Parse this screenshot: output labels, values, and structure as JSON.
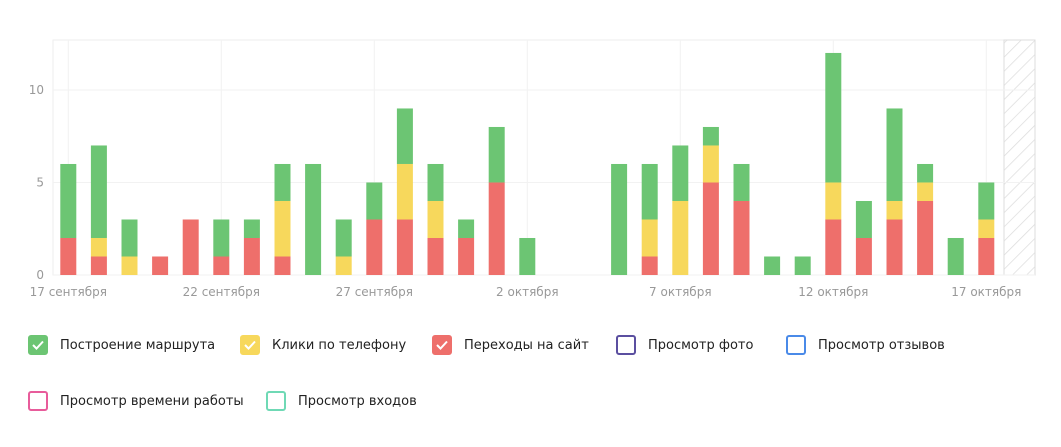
{
  "chart_data": {
    "type": "bar",
    "stacked": true,
    "categories": [
      "17 сентября",
      null,
      null,
      null,
      null,
      "22 сентября",
      null,
      null,
      null,
      null,
      "27 сентября",
      null,
      null,
      null,
      null,
      "2 октября",
      null,
      null,
      null,
      null,
      "7 октября",
      null,
      null,
      null,
      null,
      "12 октября",
      null,
      null,
      null,
      null,
      "17 октября"
    ],
    "ylim": [
      0,
      12.7
    ],
    "yticks": [
      0,
      5,
      10
    ],
    "grid": true,
    "series": [
      {
        "name": "Переходы на сайт",
        "color": "#ee6f6b",
        "checked": true,
        "values": [
          2,
          1,
          0,
          1,
          3,
          1,
          2,
          1,
          0,
          0,
          3,
          3,
          2,
          2,
          5,
          0,
          0,
          0,
          0,
          1,
          0,
          5,
          4,
          0,
          0,
          3,
          2,
          3,
          4,
          0,
          2
        ]
      },
      {
        "name": "Клики по телефону",
        "color": "#f7d85c",
        "checked": true,
        "values": [
          0,
          1,
          1,
          0,
          0,
          0,
          0,
          3,
          0,
          1,
          0,
          3,
          2,
          0,
          0,
          0,
          0,
          0,
          0,
          2,
          4,
          2,
          0,
          0,
          0,
          2,
          0,
          1,
          1,
          0,
          1
        ]
      },
      {
        "name": "Построение маршрута",
        "color": "#6cc573",
        "checked": true,
        "values": [
          4,
          5,
          2,
          0,
          0,
          2,
          1,
          2,
          6,
          2,
          2,
          3,
          2,
          1,
          3,
          2,
          0,
          0,
          6,
          3,
          3,
          1,
          2,
          1,
          1,
          7,
          2,
          5,
          1,
          2,
          2
        ]
      },
      {
        "name": "Просмотр фото",
        "color": "#5b4fa0",
        "checked": false
      },
      {
        "name": "Просмотр отзывов",
        "color": "#4a8ae8",
        "checked": false
      },
      {
        "name": "Просмотр времени работы",
        "color": "#e85c9b",
        "checked": false
      },
      {
        "name": "Просмотр входов",
        "color": "#6fd9b5",
        "checked": false
      }
    ]
  }
}
